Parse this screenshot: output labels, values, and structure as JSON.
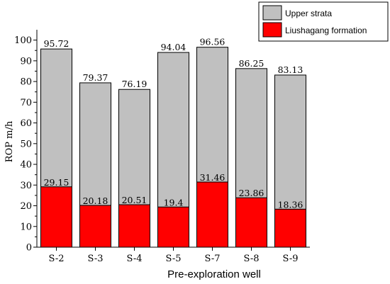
{
  "chart_data": {
    "type": "bar",
    "stacked": "overlay",
    "categories": [
      "S-2",
      "S-3",
      "S-4",
      "S-5",
      "S-7",
      "S-8",
      "S-9"
    ],
    "series": [
      {
        "name": "Upper strata",
        "color": "#c0c0c0",
        "values": [
          95.72,
          79.37,
          76.19,
          94.04,
          96.56,
          86.25,
          83.13
        ]
      },
      {
        "name": "Liushagang formation",
        "color": "#ff0000",
        "values": [
          29.15,
          20.18,
          20.51,
          19.4,
          31.46,
          23.86,
          18.36
        ]
      }
    ],
    "data_labels": {
      "upper": [
        "95.72",
        "79.37",
        "76.19",
        "94.04",
        "96.56",
        "86.25",
        "83.13"
      ],
      "lower": [
        "29.15",
        "20.18",
        "20.51",
        "19.4",
        "31.46",
        "23.86",
        "18.36"
      ]
    },
    "xlabel": "Pre-exploration well",
    "ylabel": "ROP m/h",
    "ylim": [
      0,
      105
    ],
    "yticks": [
      "0",
      "10",
      "20",
      "30",
      "40",
      "50",
      "60",
      "70",
      "80",
      "90",
      "100"
    ],
    "legend_position": "top-right",
    "grid": false
  }
}
